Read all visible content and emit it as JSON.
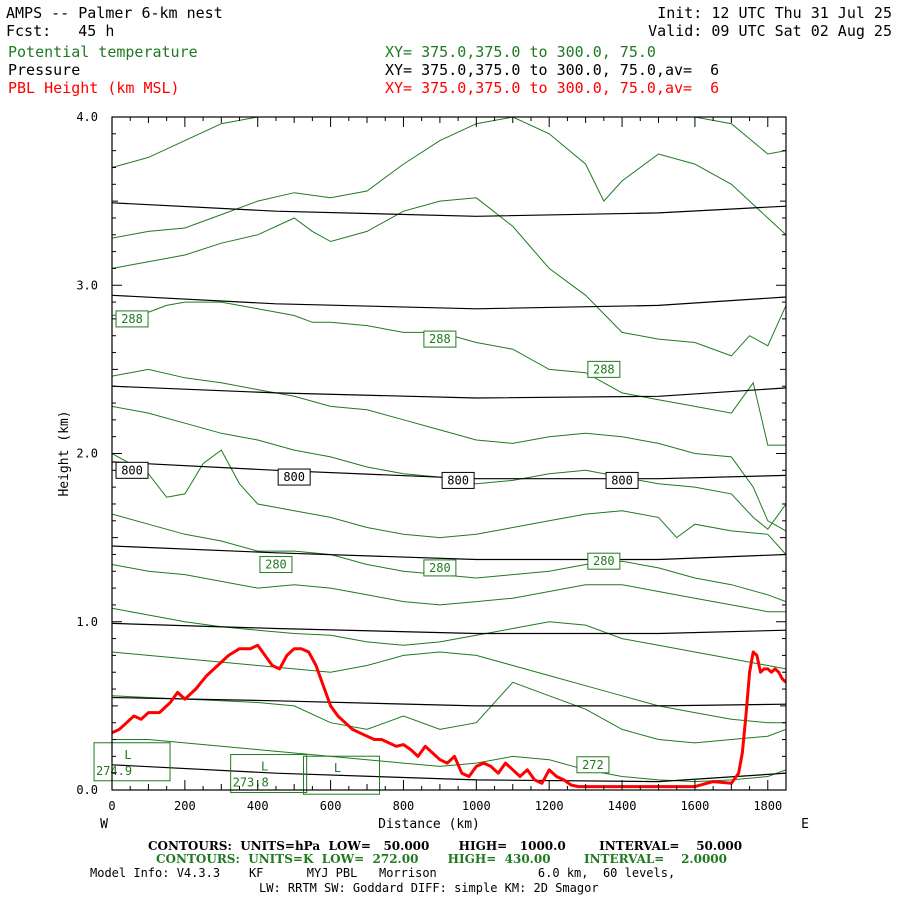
{
  "header": {
    "model_title": "AMPS -- Palmer 6-km nest",
    "forecast": "Fcst:   45 h",
    "init": "Init: 12 UTC Thu 31 Jul 25",
    "valid": "Valid: 09 UTC Sat 02 Aug 25"
  },
  "fields": [
    {
      "name": "Potential temperature",
      "xy": "XY= 375.0,375.0 to 300.0, 75.0",
      "color": "#1f7a1f"
    },
    {
      "name": "Pressure",
      "xy": "XY= 375.0,375.0 to 300.0, 75.0,av=  6",
      "color": "#000000"
    },
    {
      "name": "PBL Height (km MSL)",
      "xy": "XY= 375.0,375.0 to 300.0, 75.0,av=  6",
      "color": "#ff0000"
    }
  ],
  "footer": {
    "pressure_contours": "CONTOURS:  UNITS=hPa  LOW=   50.000       HIGH=   1000.0        INTERVAL=    50.000",
    "theta_contours": "CONTOURS:  UNITS=K  LOW=  272.00       HIGH=  430.00        INTERVAL=    2.0000",
    "model_info_1": "Model Info: V4.3.3    KF      MYJ PBL   Morrison              6.0 km,  60 levels,",
    "model_info_2": "LW: RRTM SW: Goddard DIFF: simple KM: 2D Smagor"
  },
  "chart_data": {
    "type": "line",
    "xlabel": "Distance (km)",
    "ylabel": "Height (km)",
    "xlim": [
      0,
      1850
    ],
    "ylim": [
      0,
      4.0
    ],
    "x_ticks": [
      0,
      200,
      400,
      600,
      800,
      1000,
      1200,
      1400,
      1600,
      1800
    ],
    "y_ticks": [
      0.0,
      1.0,
      2.0,
      3.0,
      4.0
    ],
    "x_tick_labels": [
      "0",
      "200",
      "400",
      "600",
      "800",
      "1000",
      "1200",
      "1400",
      "1600",
      "1800"
    ],
    "y_tick_labels": [
      "0.0",
      "1.0",
      "2.0",
      "3.0",
      "4.0"
    ],
    "west_label": "W",
    "east_label": "E",
    "pressure_contours": [
      {
        "x": [
          0,
          450,
          1000,
          1500,
          1850
        ],
        "y": [
          3.49,
          3.44,
          3.41,
          3.43,
          3.47
        ]
      },
      {
        "x": [
          0,
          450,
          1000,
          1500,
          1850
        ],
        "y": [
          2.94,
          2.89,
          2.86,
          2.88,
          2.93
        ]
      },
      {
        "x": [
          0,
          450,
          1000,
          1500,
          1850
        ],
        "y": [
          2.4,
          2.36,
          2.33,
          2.34,
          2.39
        ]
      },
      {
        "x": [
          0,
          450,
          1000,
          1500,
          1850
        ],
        "y": [
          1.95,
          1.9,
          1.85,
          1.85,
          1.87
        ]
      },
      {
        "x": [
          0,
          450,
          1000,
          1500,
          1850
        ],
        "y": [
          1.45,
          1.41,
          1.37,
          1.37,
          1.4
        ]
      },
      {
        "x": [
          0,
          450,
          1000,
          1500,
          1850
        ],
        "y": [
          0.99,
          0.96,
          0.93,
          0.93,
          0.95
        ]
      },
      {
        "x": [
          0,
          450,
          1000,
          1500,
          1850
        ],
        "y": [
          0.55,
          0.53,
          0.5,
          0.5,
          0.51
        ]
      },
      {
        "x": [
          0,
          450,
          1000,
          1500,
          1850
        ],
        "y": [
          0.15,
          0.1,
          0.06,
          0.05,
          0.1
        ]
      }
    ],
    "pressure_labels": [
      {
        "text": "800",
        "x": 55,
        "y": 1.9
      },
      {
        "text": "800",
        "x": 500,
        "y": 1.86
      },
      {
        "text": "800",
        "x": 950,
        "y": 1.84
      },
      {
        "text": "800",
        "x": 1400,
        "y": 1.84
      }
    ],
    "theta_contours": [
      {
        "x": [
          0,
          100,
          200,
          300,
          400,
          500,
          550,
          600,
          700,
          800,
          900,
          1000,
          1100,
          1200,
          1300,
          1400,
          1500,
          1600,
          1700,
          1800,
          1850
        ],
        "y": [
          3.7,
          3.76,
          3.86,
          3.96,
          4.0,
          4.0,
          4.0,
          4.0,
          4.0,
          4.0,
          4.0,
          4.0,
          4.0,
          4.0,
          4.0,
          4.0,
          4.0,
          4.0,
          3.96,
          3.78,
          3.8
        ]
      },
      {
        "x": [
          0,
          100,
          200,
          300,
          400,
          500,
          600,
          700,
          800,
          900,
          1000,
          1100,
          1200,
          1300,
          1350,
          1400,
          1500,
          1600,
          1700,
          1800,
          1850
        ],
        "y": [
          3.28,
          3.32,
          3.34,
          3.42,
          3.5,
          3.55,
          3.52,
          3.56,
          3.72,
          3.86,
          3.96,
          4.0,
          3.9,
          3.72,
          3.5,
          3.62,
          3.78,
          3.72,
          3.6,
          3.4,
          3.3
        ]
      },
      {
        "x": [
          0,
          100,
          200,
          300,
          400,
          500,
          550,
          600,
          700,
          800,
          900,
          1000,
          1100,
          1200,
          1300,
          1400,
          1500,
          1600,
          1700,
          1750,
          1800,
          1850
        ],
        "y": [
          3.1,
          3.14,
          3.18,
          3.25,
          3.3,
          3.4,
          3.32,
          3.26,
          3.32,
          3.44,
          3.5,
          3.52,
          3.35,
          3.1,
          2.94,
          2.72,
          2.68,
          2.66,
          2.58,
          2.7,
          2.64,
          2.88
        ]
      },
      {
        "x": [
          0,
          100,
          150,
          200,
          300,
          400,
          500,
          550,
          600,
          700,
          800,
          900,
          1000,
          1100,
          1200,
          1300,
          1400,
          1500,
          1600,
          1700,
          1760,
          1800,
          1850
        ],
        "y": [
          2.82,
          2.84,
          2.88,
          2.9,
          2.9,
          2.86,
          2.82,
          2.78,
          2.78,
          2.76,
          2.72,
          2.72,
          2.66,
          2.62,
          2.5,
          2.48,
          2.36,
          2.32,
          2.28,
          2.24,
          2.42,
          2.05,
          2.05
        ]
      },
      {
        "x": [
          0,
          100,
          200,
          300,
          400,
          500,
          600,
          700,
          800,
          900,
          1000,
          1100,
          1200,
          1300,
          1400,
          1500,
          1600,
          1700,
          1760,
          1800,
          1850
        ],
        "y": [
          2.46,
          2.5,
          2.45,
          2.42,
          2.38,
          2.34,
          2.28,
          2.26,
          2.2,
          2.14,
          2.08,
          2.06,
          2.1,
          2.12,
          2.1,
          2.06,
          2.0,
          1.98,
          1.8,
          1.6,
          1.54
        ]
      },
      {
        "x": [
          0,
          100,
          200,
          300,
          400,
          500,
          600,
          700,
          800,
          900,
          1000,
          1100,
          1200,
          1300,
          1400,
          1500,
          1600,
          1700,
          1760,
          1800,
          1850
        ],
        "y": [
          2.28,
          2.24,
          2.18,
          2.12,
          2.08,
          2.02,
          1.98,
          1.92,
          1.88,
          1.86,
          1.82,
          1.84,
          1.88,
          1.9,
          1.86,
          1.82,
          1.8,
          1.76,
          1.62,
          1.55,
          1.7
        ]
      },
      {
        "x": [
          0,
          100,
          150,
          200,
          250,
          300,
          350,
          400,
          500,
          600,
          700,
          800,
          900,
          1000,
          1100,
          1200,
          1300,
          1400,
          1500,
          1550,
          1600,
          1700,
          1800,
          1850
        ],
        "y": [
          2.0,
          1.88,
          1.74,
          1.76,
          1.94,
          2.02,
          1.82,
          1.7,
          1.66,
          1.62,
          1.56,
          1.52,
          1.5,
          1.52,
          1.56,
          1.6,
          1.64,
          1.66,
          1.62,
          1.5,
          1.58,
          1.54,
          1.52,
          1.4
        ]
      },
      {
        "x": [
          0,
          100,
          200,
          300,
          400,
          500,
          600,
          700,
          800,
          900,
          1000,
          1100,
          1200,
          1300,
          1400,
          1500,
          1600,
          1700,
          1800,
          1850
        ],
        "y": [
          1.64,
          1.58,
          1.52,
          1.48,
          1.42,
          1.42,
          1.4,
          1.34,
          1.3,
          1.28,
          1.26,
          1.28,
          1.3,
          1.34,
          1.36,
          1.32,
          1.26,
          1.22,
          1.16,
          1.12
        ]
      },
      {
        "x": [
          0,
          100,
          200,
          300,
          400,
          500,
          600,
          700,
          800,
          900,
          1000,
          1100,
          1200,
          1300,
          1400,
          1500,
          1600,
          1700,
          1800,
          1850
        ],
        "y": [
          1.34,
          1.3,
          1.28,
          1.24,
          1.2,
          1.22,
          1.2,
          1.16,
          1.12,
          1.1,
          1.12,
          1.14,
          1.18,
          1.22,
          1.22,
          1.18,
          1.14,
          1.1,
          1.06,
          1.06
        ]
      },
      {
        "x": [
          0,
          100,
          200,
          300,
          400,
          500,
          600,
          700,
          800,
          900,
          1000,
          1100,
          1200,
          1300,
          1400,
          1500,
          1600,
          1700,
          1800,
          1850
        ],
        "y": [
          1.08,
          1.04,
          1.0,
          0.97,
          0.95,
          0.93,
          0.92,
          0.88,
          0.86,
          0.88,
          0.92,
          0.96,
          1.0,
          0.98,
          0.9,
          0.86,
          0.82,
          0.78,
          0.74,
          0.72
        ]
      },
      {
        "x": [
          0,
          100,
          200,
          300,
          400,
          500,
          600,
          700,
          800,
          900,
          1000,
          1100,
          1200,
          1300,
          1400,
          1500,
          1600,
          1700,
          1800,
          1850
        ],
        "y": [
          0.82,
          0.8,
          0.78,
          0.76,
          0.74,
          0.72,
          0.7,
          0.74,
          0.8,
          0.82,
          0.8,
          0.74,
          0.68,
          0.62,
          0.56,
          0.5,
          0.46,
          0.42,
          0.4,
          0.4
        ]
      },
      {
        "x": [
          0,
          100,
          200,
          300,
          400,
          500,
          600,
          700,
          800,
          900,
          1000,
          1100,
          1200,
          1300,
          1400,
          1500,
          1600,
          1700,
          1800,
          1850
        ],
        "y": [
          0.56,
          0.55,
          0.54,
          0.53,
          0.52,
          0.5,
          0.4,
          0.36,
          0.44,
          0.36,
          0.4,
          0.64,
          0.56,
          0.48,
          0.36,
          0.3,
          0.28,
          0.3,
          0.32,
          0.36
        ]
      },
      {
        "x": [
          0,
          100,
          200,
          300,
          400,
          500,
          600,
          700,
          800,
          900,
          1000,
          1100,
          1200,
          1300,
          1400,
          1500,
          1600,
          1700,
          1800,
          1850
        ],
        "y": [
          0.3,
          0.3,
          0.28,
          0.26,
          0.24,
          0.22,
          0.2,
          0.18,
          0.16,
          0.14,
          0.16,
          0.2,
          0.18,
          0.12,
          0.08,
          0.06,
          0.05,
          0.06,
          0.08,
          0.12
        ]
      }
    ],
    "theta_labels": [
      {
        "text": "288",
        "x": 55,
        "y": 2.8
      },
      {
        "text": "288",
        "x": 900,
        "y": 2.68
      },
      {
        "text": "288",
        "x": 1350,
        "y": 2.5
      },
      {
        "text": "280",
        "x": 450,
        "y": 1.34
      },
      {
        "text": "280",
        "x": 900,
        "y": 1.32
      },
      {
        "text": "280",
        "x": 1350,
        "y": 1.36
      },
      {
        "text": "272",
        "x": 1320,
        "y": 0.15
      }
    ],
    "low_markers": [
      {
        "letter": "L",
        "value": "274.9",
        "x": 55,
        "y": 0.15
      },
      {
        "letter": "L",
        "value": "273.8",
        "x": 430,
        "y": 0.08
      },
      {
        "letter": "L",
        "value": "",
        "x": 630,
        "y": 0.07
      }
    ],
    "series": [
      {
        "name": "PBL Height (km MSL)",
        "color": "#ff0000",
        "x": [
          0,
          20,
          40,
          60,
          80,
          100,
          130,
          160,
          180,
          200,
          230,
          260,
          290,
          320,
          350,
          380,
          400,
          420,
          440,
          460,
          480,
          500,
          520,
          540,
          560,
          580,
          600,
          620,
          640,
          660,
          680,
          700,
          720,
          740,
          760,
          780,
          800,
          820,
          840,
          860,
          880,
          900,
          920,
          940,
          960,
          980,
          1000,
          1020,
          1040,
          1060,
          1080,
          1100,
          1120,
          1140,
          1160,
          1180,
          1200,
          1220,
          1240,
          1260,
          1280,
          1300,
          1350,
          1400,
          1450,
          1500,
          1550,
          1600,
          1650,
          1700,
          1720,
          1730,
          1740,
          1750,
          1760,
          1770,
          1780,
          1790,
          1800,
          1810,
          1820,
          1830,
          1840,
          1850
        ],
        "y": [
          0.34,
          0.36,
          0.4,
          0.44,
          0.42,
          0.46,
          0.46,
          0.52,
          0.58,
          0.54,
          0.6,
          0.68,
          0.74,
          0.8,
          0.84,
          0.84,
          0.86,
          0.8,
          0.74,
          0.72,
          0.8,
          0.84,
          0.84,
          0.82,
          0.74,
          0.62,
          0.5,
          0.44,
          0.4,
          0.36,
          0.34,
          0.32,
          0.3,
          0.3,
          0.28,
          0.26,
          0.27,
          0.24,
          0.2,
          0.26,
          0.22,
          0.18,
          0.16,
          0.2,
          0.1,
          0.08,
          0.14,
          0.16,
          0.14,
          0.1,
          0.16,
          0.12,
          0.08,
          0.12,
          0.06,
          0.04,
          0.12,
          0.08,
          0.06,
          0.03,
          0.02,
          0.02,
          0.02,
          0.02,
          0.02,
          0.02,
          0.02,
          0.02,
          0.05,
          0.04,
          0.1,
          0.22,
          0.44,
          0.7,
          0.82,
          0.8,
          0.7,
          0.72,
          0.72,
          0.7,
          0.72,
          0.7,
          0.66,
          0.64
        ]
      }
    ]
  }
}
